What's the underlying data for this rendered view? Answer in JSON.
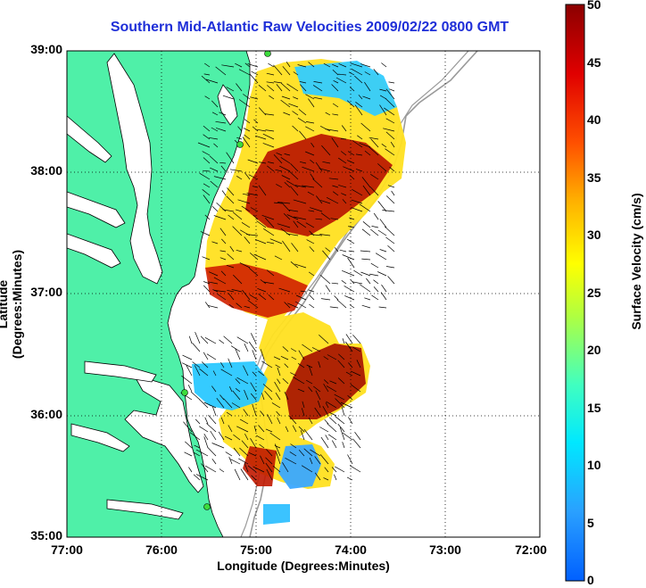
{
  "title": "Southern Mid-Atlantic Raw Velocities 2009/02/22 0800 GMT",
  "xlabel": "Longitude (Degrees:Minutes)",
  "ylabel": "Latitude (Degrees:Minutes)",
  "colorbar": {
    "label": "Surface Velocity (cm/s)",
    "ticks": [
      "0",
      "5",
      "10",
      "15",
      "20",
      "25",
      "30",
      "35",
      "40",
      "45",
      "50"
    ],
    "range": [
      0,
      50
    ]
  },
  "x_ticks": [
    "77:00",
    "76:00",
    "75:00",
    "74:00",
    "73:00",
    "72:00"
  ],
  "y_ticks": [
    "39:00",
    "38:00",
    "37:00",
    "36:00",
    "35:00"
  ],
  "colors": {
    "land": "#4ff0a8",
    "title": "#1f2fd8",
    "vector": "#000000"
  },
  "map": {
    "lon_range": [
      -77,
      -72
    ],
    "lat_range": [
      35,
      39
    ],
    "grid": "dotted"
  }
}
